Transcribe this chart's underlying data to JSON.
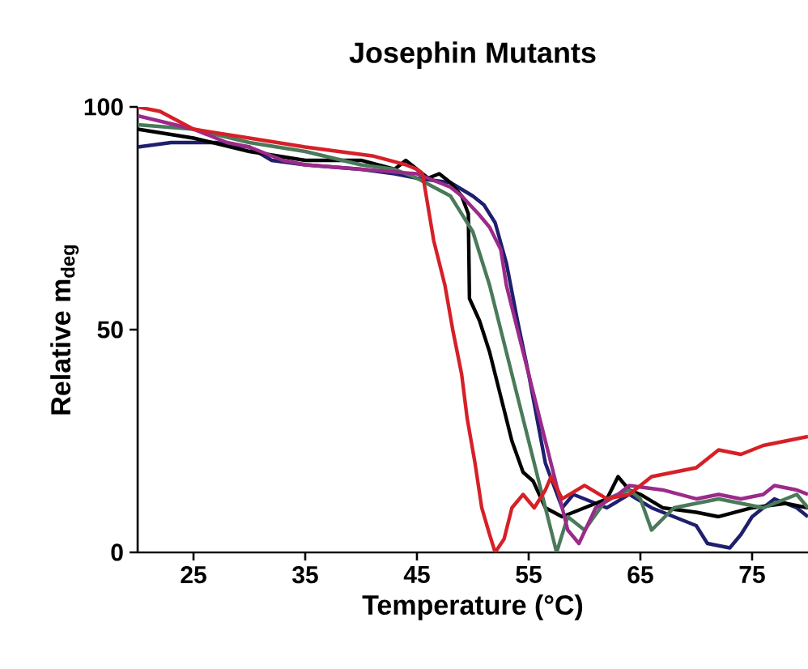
{
  "chart_data": {
    "type": "line",
    "title": "Josephin Mutants",
    "xlabel": "Temperature (°C)",
    "ylabel": "Relative m$_{deg}$",
    "xlim": [
      20,
      80
    ],
    "ylim": [
      0,
      100
    ],
    "xticks": [
      25,
      35,
      45,
      55,
      65,
      75
    ],
    "yticks": [
      0,
      50,
      100
    ],
    "grid": false,
    "marker": "none",
    "line_style": "solid",
    "series": [
      {
        "color": "#1f1f6e",
        "x": [
          20,
          23,
          27,
          30,
          32,
          35,
          40,
          43,
          45,
          48,
          50,
          51,
          52,
          53,
          54,
          55,
          56.5,
          58,
          59,
          60,
          62,
          64,
          66,
          68,
          70,
          71,
          73,
          74,
          75,
          77,
          79,
          80
        ],
        "values": [
          91,
          92,
          92,
          91,
          88,
          87,
          86,
          85,
          84,
          83,
          80,
          78,
          74,
          65,
          52,
          40,
          20,
          10,
          13,
          12,
          10,
          13,
          10,
          8,
          6,
          2,
          1,
          4,
          8,
          12,
          10,
          8
        ]
      },
      {
        "color": "#000000",
        "x": [
          20,
          25,
          30,
          35,
          40,
          43,
          44,
          46,
          47,
          48,
          49,
          49.6,
          49.7,
          50.6,
          51.5,
          52.5,
          53.5,
          54.5,
          55.4,
          56.5,
          58,
          60,
          62,
          63,
          64,
          65,
          67,
          70,
          72,
          75,
          78,
          80
        ],
        "values": [
          95,
          93,
          90,
          88,
          88,
          86,
          88,
          84,
          85,
          83,
          80,
          76,
          57,
          52,
          45,
          35,
          25,
          18,
          16,
          10,
          8,
          10,
          12,
          17,
          14,
          13,
          10,
          9,
          8,
          10,
          11,
          10
        ]
      },
      {
        "color": "#4a7a5a",
        "x": [
          20,
          25,
          30,
          35,
          40,
          43,
          45,
          48,
          50,
          51.5,
          52.5,
          53.5,
          54.5,
          55.5,
          56.5,
          57.5,
          58.5,
          60,
          62,
          64,
          65,
          66,
          68,
          70,
          72,
          74,
          76,
          78,
          79,
          80
        ],
        "values": [
          96,
          95,
          92,
          90,
          87,
          86,
          84,
          80,
          72,
          60,
          50,
          40,
          30,
          20,
          10,
          0,
          8,
          5,
          12,
          14,
          12,
          5,
          10,
          11,
          12,
          11,
          10,
          12,
          13,
          10
        ]
      },
      {
        "color": "#9b2a8a",
        "x": [
          20,
          25,
          28,
          30,
          33,
          35,
          40,
          45,
          48,
          49,
          50.5,
          51.5,
          52.5,
          53,
          54,
          55,
          56,
          57,
          58,
          58.5,
          59.5,
          61,
          63,
          64,
          67,
          70,
          72,
          74,
          76,
          77,
          79,
          80
        ],
        "values": [
          98,
          95,
          92,
          91,
          88,
          87,
          86,
          85,
          82,
          80,
          76,
          73,
          68,
          60,
          50,
          40,
          30,
          20,
          10,
          5,
          2,
          10,
          13,
          15,
          14,
          12,
          13,
          12,
          13,
          15,
          14,
          13
        ]
      },
      {
        "color": "#d62027",
        "x": [
          20,
          22,
          25,
          30,
          35,
          38,
          41,
          44,
          45,
          45.5,
          46.5,
          47.5,
          48.2,
          49,
          49.5,
          50.2,
          50.8,
          51.5,
          52,
          52.8,
          53.5,
          54.5,
          55.5,
          56.5,
          57,
          58,
          60,
          62,
          64,
          66,
          68,
          70,
          72,
          74,
          76,
          78,
          80
        ],
        "values": [
          100,
          99,
          95,
          93,
          91,
          90,
          89,
          87,
          86,
          85,
          70,
          60,
          50,
          40,
          30,
          20,
          10,
          4,
          0,
          3,
          10,
          13,
          10,
          14,
          17,
          12,
          15,
          12,
          13,
          17,
          18,
          19,
          23,
          22,
          24,
          25,
          26
        ]
      }
    ]
  }
}
